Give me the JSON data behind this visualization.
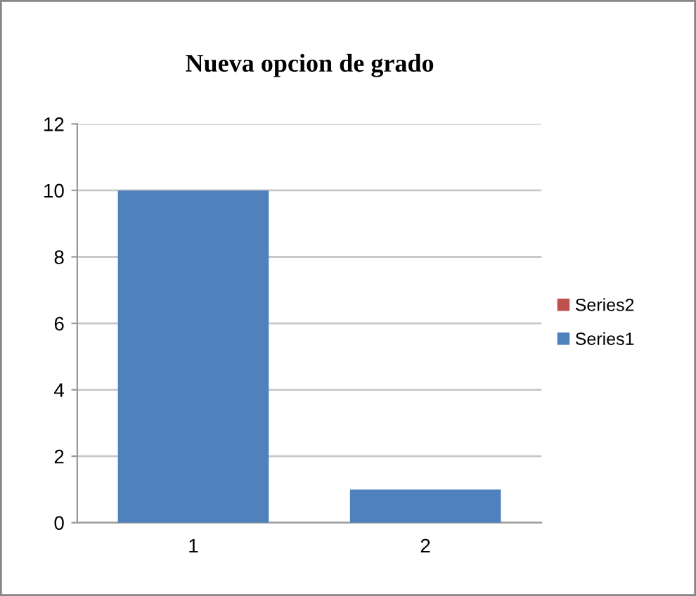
{
  "chart_data": {
    "type": "bar",
    "title": "Nueva opcion de grado",
    "categories": [
      "1",
      "2"
    ],
    "series": [
      {
        "name": "Series1",
        "color": "#4f81bd",
        "values": [
          10,
          1
        ]
      },
      {
        "name": "Series2",
        "color": "#c0504d",
        "values": [
          null,
          null
        ]
      }
    ],
    "stacked": true,
    "ylim": [
      0,
      12
    ],
    "yticks": [
      0,
      2,
      4,
      6,
      8,
      10,
      12
    ],
    "grid": "y",
    "legend": "right"
  }
}
